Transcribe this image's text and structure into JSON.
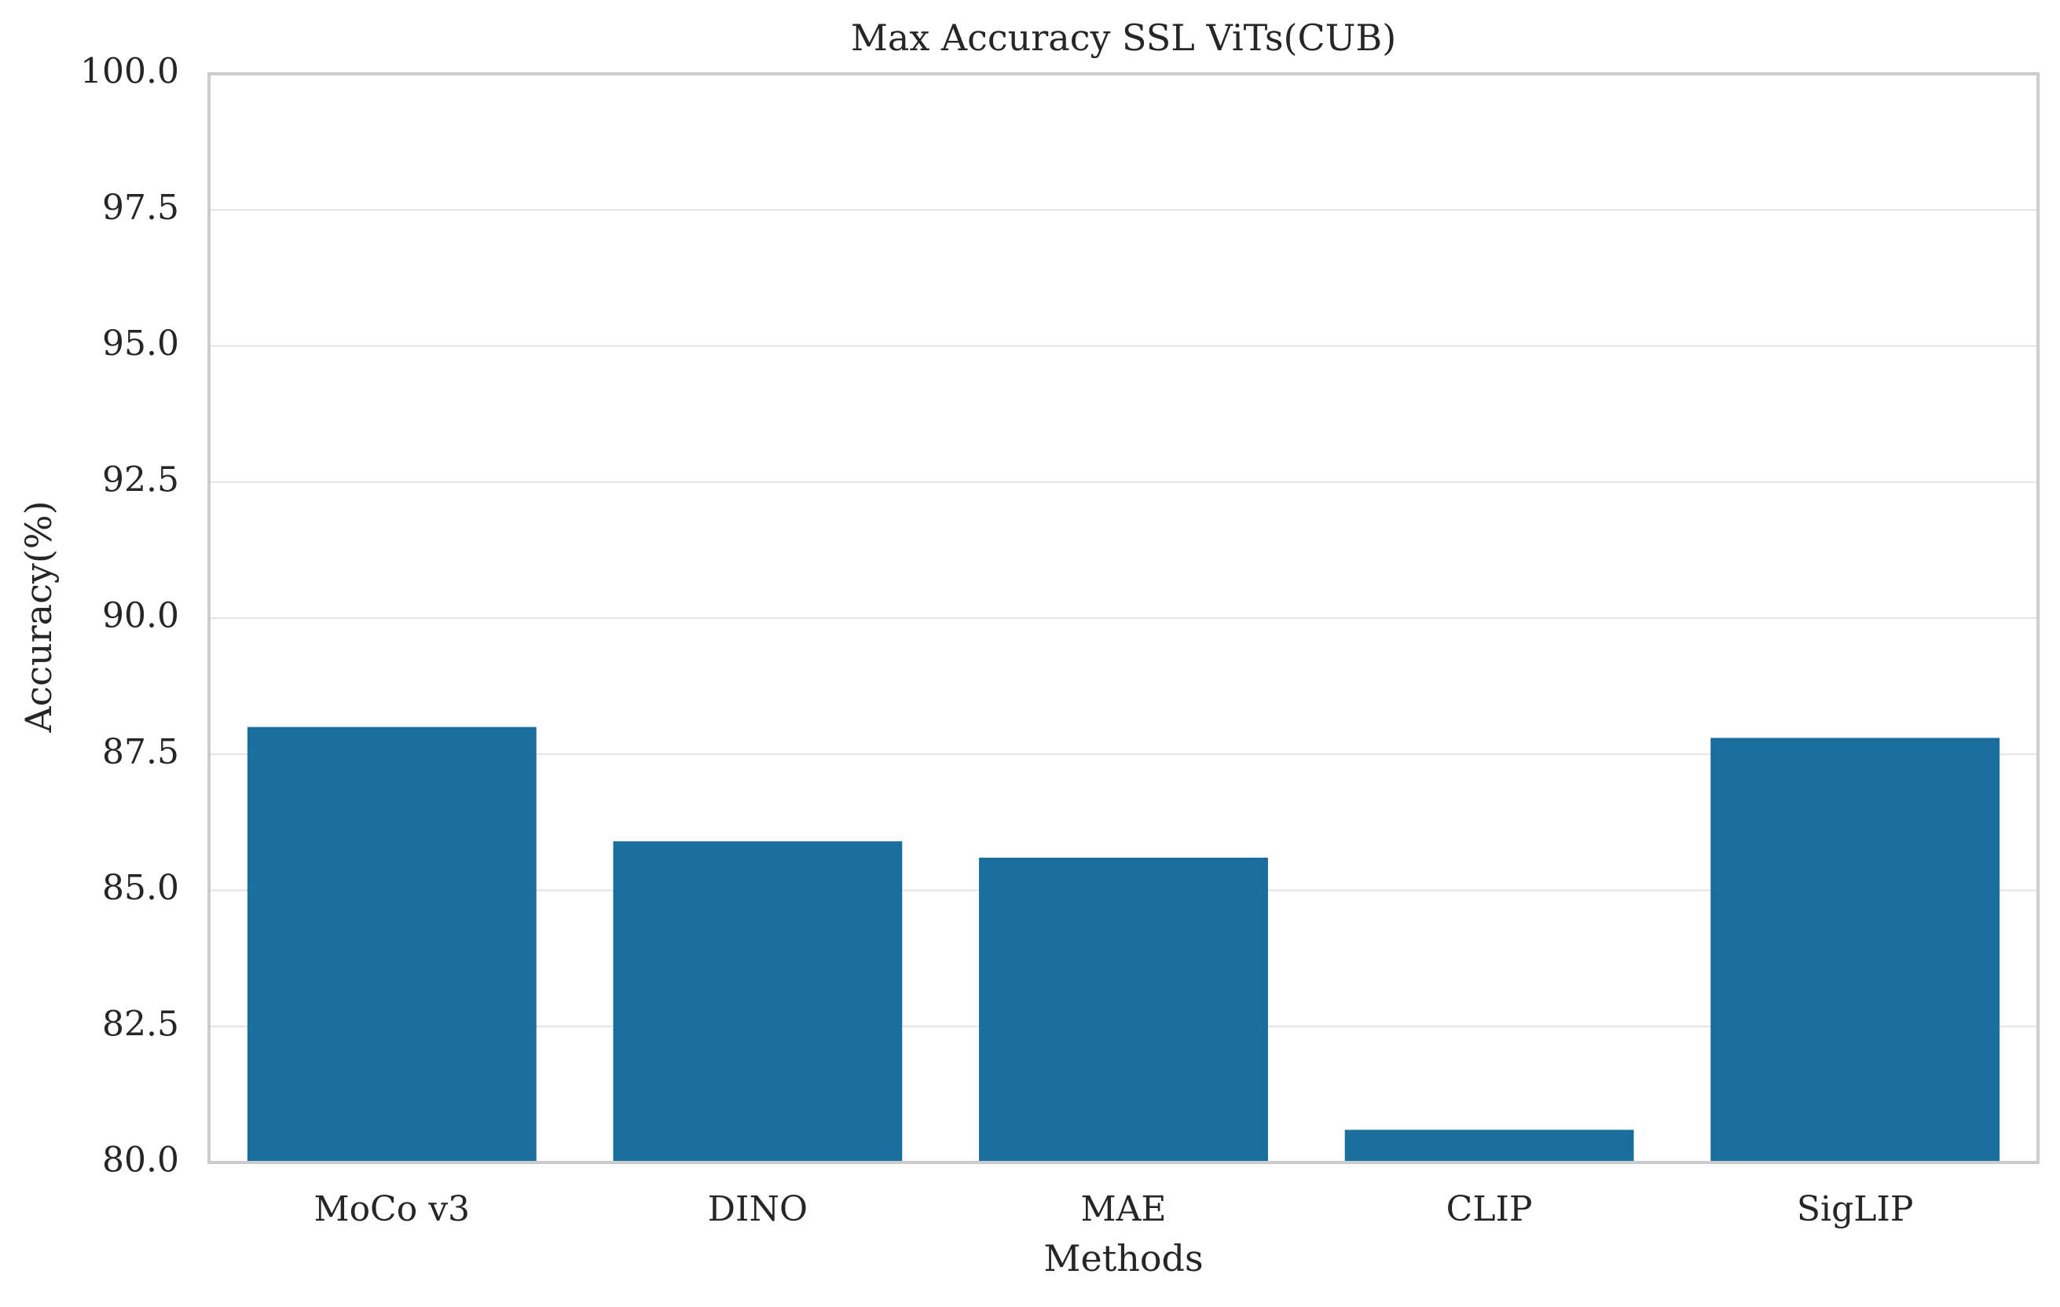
{
  "chart_data": {
    "type": "bar",
    "title": "Max Accuracy SSL ViTs(CUB)",
    "xlabel": "Methods",
    "ylabel": "Accuracy(%)",
    "categories": [
      "MoCo v3",
      "DINO",
      "MAE",
      "CLIP",
      "SigLIP"
    ],
    "values": [
      88.0,
      85.9,
      85.6,
      80.6,
      87.8
    ],
    "ylim": [
      80.0,
      100.0
    ],
    "yticks": [
      "80.0",
      "82.5",
      "85.0",
      "87.5",
      "90.0",
      "92.5",
      "95.0",
      "97.5",
      "100.0"
    ],
    "grid": "horizontal",
    "legend": "none",
    "bar_color": "#1a6e9e",
    "grid_color": "#e3e3e3",
    "spine_color": "#cccccc"
  }
}
